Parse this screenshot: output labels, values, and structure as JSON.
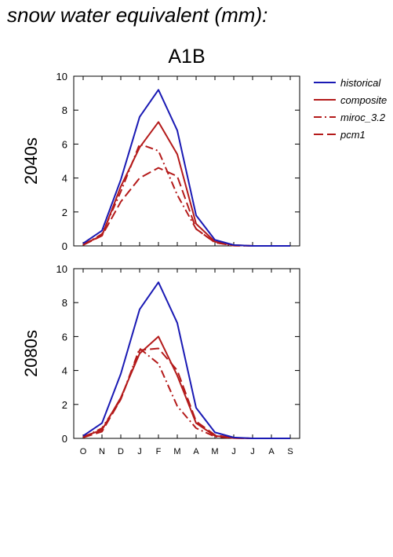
{
  "figure": {
    "title": "snow water equivalent (mm):",
    "panel_title": "A1B"
  },
  "colors": {
    "historical": "#1a1ab4",
    "scenario": "#b41a1a"
  },
  "chart_data": [
    {
      "type": "line",
      "row_label": "2040s",
      "categories": [
        "O",
        "N",
        "D",
        "J",
        "F",
        "M",
        "A",
        "M",
        "J",
        "J",
        "A",
        "S"
      ],
      "ylim": [
        0,
        10
      ],
      "yticks": [
        0,
        2,
        4,
        6,
        8,
        10
      ],
      "series": [
        {
          "name": "historical",
          "style": "solid",
          "color": "#1a1ab4",
          "values": [
            0.15,
            0.9,
            3.9,
            7.6,
            9.2,
            6.8,
            1.8,
            0.35,
            0.05,
            0.0,
            0.0,
            0.0
          ]
        },
        {
          "name": "composite",
          "style": "solid",
          "color": "#b41a1a",
          "values": [
            0.1,
            0.6,
            3.5,
            5.8,
            7.3,
            5.4,
            1.3,
            0.25,
            0.05,
            0.0,
            0.0,
            0.0
          ]
        },
        {
          "name": "miroc_3.2",
          "style": "dashdot",
          "color": "#b41a1a",
          "values": [
            0.05,
            0.7,
            3.2,
            6.0,
            5.6,
            3.0,
            1.0,
            0.2,
            0.02,
            0.0,
            0.0,
            0.0
          ]
        },
        {
          "name": "pcm1",
          "style": "dashed",
          "color": "#b41a1a",
          "values": [
            0.05,
            0.6,
            2.6,
            4.0,
            4.6,
            4.1,
            1.0,
            0.2,
            0.02,
            0.0,
            0.0,
            0.0
          ]
        }
      ]
    },
    {
      "type": "line",
      "row_label": "2080s",
      "categories": [
        "O",
        "N",
        "D",
        "J",
        "F",
        "M",
        "A",
        "M",
        "J",
        "J",
        "A",
        "S"
      ],
      "ylim": [
        0,
        10
      ],
      "yticks": [
        0,
        2,
        4,
        6,
        8,
        10
      ],
      "series": [
        {
          "name": "historical",
          "style": "solid",
          "color": "#1a1ab4",
          "values": [
            0.15,
            0.9,
            3.8,
            7.6,
            9.2,
            6.8,
            1.8,
            0.35,
            0.05,
            0.0,
            0.0,
            0.0
          ]
        },
        {
          "name": "composite",
          "style": "solid",
          "color": "#b41a1a",
          "values": [
            0.1,
            0.5,
            2.4,
            5.0,
            6.0,
            3.7,
            0.9,
            0.15,
            0.02,
            0.0,
            0.0,
            0.0
          ]
        },
        {
          "name": "miroc_3.2",
          "style": "dashdot",
          "color": "#b41a1a",
          "values": [
            0.05,
            0.6,
            2.3,
            5.3,
            4.4,
            1.9,
            0.6,
            0.1,
            0.02,
            0.0,
            0.0,
            0.0
          ]
        },
        {
          "name": "pcm1",
          "style": "dashed",
          "color": "#b41a1a",
          "values": [
            0.05,
            0.4,
            2.3,
            5.2,
            5.3,
            4.0,
            1.0,
            0.2,
            0.02,
            0.0,
            0.0,
            0.0
          ]
        }
      ]
    }
  ],
  "legend": {
    "placement": "right",
    "entries": [
      {
        "label": "historical",
        "style": "solid",
        "color": "#1a1ab4"
      },
      {
        "label": "composite",
        "style": "solid",
        "color": "#b41a1a"
      },
      {
        "label": "miroc_3.2",
        "style": "dashdot",
        "color": "#b41a1a"
      },
      {
        "label": "pcm1",
        "style": "dashed",
        "color": "#b41a1a"
      }
    ]
  }
}
